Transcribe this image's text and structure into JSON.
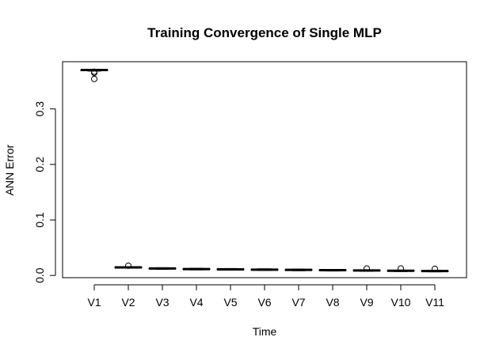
{
  "chart_data": {
    "type": "boxplot",
    "title": "Training Convergence of Single MLP",
    "xlabel": "Time",
    "ylabel": "ANN Error",
    "ylim": [
      -0.004,
      0.385
    ],
    "yticks": [
      0.0,
      0.1,
      0.2,
      0.3
    ],
    "ytick_labels": [
      "0.0",
      "0.1",
      "0.2",
      "0.3"
    ],
    "grid": false,
    "categories": [
      "V1",
      "V2",
      "V3",
      "V4",
      "V5",
      "V6",
      "V7",
      "V8",
      "V9",
      "V10",
      "V11"
    ],
    "boxes": [
      {
        "name": "V1",
        "whisker_low": 0.368,
        "q1": 0.369,
        "median": 0.37,
        "q3": 0.37,
        "whisker_high": 0.371,
        "outliers": [
          0.354,
          0.365,
          0.367
        ]
      },
      {
        "name": "V2",
        "whisker_low": 0.0135,
        "q1": 0.014,
        "median": 0.0145,
        "q3": 0.015,
        "whisker_high": 0.0155,
        "outliers": [
          0.0175
        ]
      },
      {
        "name": "V3",
        "whisker_low": 0.011,
        "q1": 0.012,
        "median": 0.0125,
        "q3": 0.013,
        "whisker_high": 0.014,
        "outliers": []
      },
      {
        "name": "V4",
        "whisker_low": 0.01,
        "q1": 0.011,
        "median": 0.0115,
        "q3": 0.012,
        "whisker_high": 0.013,
        "outliers": []
      },
      {
        "name": "V5",
        "whisker_low": 0.0095,
        "q1": 0.0105,
        "median": 0.011,
        "q3": 0.0115,
        "whisker_high": 0.0125,
        "outliers": []
      },
      {
        "name": "V6",
        "whisker_low": 0.009,
        "q1": 0.01,
        "median": 0.0105,
        "q3": 0.011,
        "whisker_high": 0.012,
        "outliers": []
      },
      {
        "name": "V7",
        "whisker_low": 0.0085,
        "q1": 0.0095,
        "median": 0.01,
        "q3": 0.0105,
        "whisker_high": 0.0115,
        "outliers": []
      },
      {
        "name": "V8",
        "whisker_low": 0.008,
        "q1": 0.009,
        "median": 0.0095,
        "q3": 0.01,
        "whisker_high": 0.011,
        "outliers": []
      },
      {
        "name": "V9",
        "whisker_low": 0.0075,
        "q1": 0.0085,
        "median": 0.009,
        "q3": 0.0095,
        "whisker_high": 0.01,
        "outliers": [
          0.0125
        ]
      },
      {
        "name": "V10",
        "whisker_low": 0.007,
        "q1": 0.008,
        "median": 0.0085,
        "q3": 0.009,
        "whisker_high": 0.0095,
        "outliers": [
          0.0125
        ]
      },
      {
        "name": "V11",
        "whisker_low": 0.0065,
        "q1": 0.0075,
        "median": 0.008,
        "q3": 0.0085,
        "whisker_high": 0.0095,
        "outliers": [
          0.012
        ]
      }
    ]
  }
}
